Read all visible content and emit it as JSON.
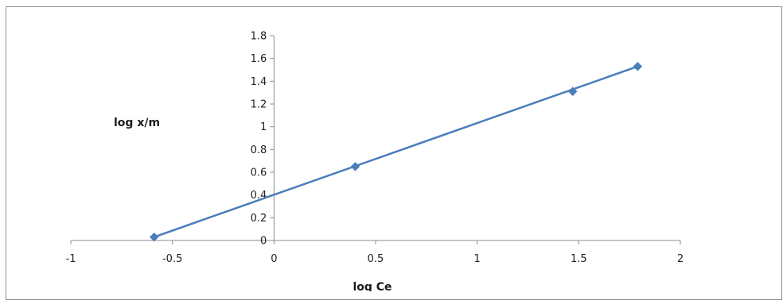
{
  "chart_data": {
    "type": "scatter",
    "title": "",
    "xlabel": "log Ce",
    "ylabel": "log x/m",
    "xlim": [
      -1,
      2
    ],
    "ylim": [
      0,
      1.8
    ],
    "x_ticks": [
      "-1",
      "-0.5",
      "0",
      "0.5",
      "1",
      "1.5",
      "2"
    ],
    "y_ticks": [
      "0",
      "0.2",
      "0.4",
      "0.6",
      "0.8",
      "1",
      "1.2",
      "1.4",
      "1.6",
      "1.8"
    ],
    "grid": false,
    "legend": "none",
    "series": [
      {
        "x": [
          -0.59,
          0.4,
          1.47,
          1.79
        ],
        "y": [
          0.03,
          0.65,
          1.31,
          1.53
        ],
        "color": "#4a7ebb",
        "marker": "diamond",
        "trendline": {
          "type": "linear",
          "x": [
            -0.59,
            1.79
          ],
          "y": [
            0.03,
            1.53
          ]
        }
      }
    ]
  }
}
